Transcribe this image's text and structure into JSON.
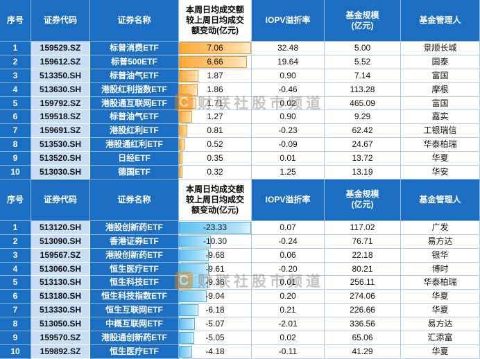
{
  "watermark": {
    "logo": "C",
    "text": "财联社股市频道"
  },
  "colors": {
    "header_blue": "#1B6EC2",
    "code_light_blue": "#C9DFF5",
    "bar_orange": "#FFA937",
    "bar_blue": "#5FC0F0"
  },
  "chart_data": [
    {
      "type": "table",
      "bar_style": "orange",
      "columns": [
        "序号",
        "证券代码",
        "证券名称",
        "本周日均成交额\n较上周日均成交\n额变动(亿元)",
        "IOPV溢折率",
        "基金规模\n(亿元)",
        "基金管理人"
      ],
      "rows": [
        {
          "no": "1",
          "code": "159529.SZ",
          "name": "标普消费ETF",
          "change": 7.06,
          "iopv": "32.48",
          "scale": "5.00",
          "manager": "景顺长城"
        },
        {
          "no": "2",
          "code": "159612.SZ",
          "name": "标普500ETF",
          "change": 6.66,
          "iopv": "19.64",
          "scale": "5.52",
          "manager": "国泰"
        },
        {
          "no": "3",
          "code": "513350.SH",
          "name": "标普油气ETF",
          "change": 1.87,
          "iopv": "0.90",
          "scale": "7.14",
          "manager": "富国"
        },
        {
          "no": "4",
          "code": "513630.SH",
          "name": "港股红利指数ETF",
          "change": 1.86,
          "iopv": "-0.46",
          "scale": "113.28",
          "manager": "摩根"
        },
        {
          "no": "5",
          "code": "159792.SZ",
          "name": "港股通互联网ETF",
          "change": 1.71,
          "iopv": "0.02",
          "scale": "465.09",
          "manager": "富国"
        },
        {
          "no": "6",
          "code": "159518.SZ",
          "name": "标普油气ETF",
          "change": 1.27,
          "iopv": "0.90",
          "scale": "9.29",
          "manager": "嘉实"
        },
        {
          "no": "7",
          "code": "159691.SZ",
          "name": "港股红利ETF",
          "change": 0.81,
          "iopv": "-0.23",
          "scale": "62.42",
          "manager": "工银瑞信"
        },
        {
          "no": "8",
          "code": "513530.SH",
          "name": "港股通红利ETF",
          "change": 0.52,
          "iopv": "-0.09",
          "scale": "24.67",
          "manager": "华泰柏瑞"
        },
        {
          "no": "9",
          "code": "513520.SH",
          "name": "日经ETF",
          "change": 0.35,
          "iopv": "0.01",
          "scale": "13.72",
          "manager": "华夏"
        },
        {
          "no": "10",
          "code": "513030.SH",
          "name": "德国ETF",
          "change": 0.32,
          "iopv": "1.25",
          "scale": "13.19",
          "manager": "华安"
        }
      ]
    },
    {
      "type": "table",
      "bar_style": "blue",
      "columns": [
        "序号",
        "证券代码",
        "证券名称",
        "本周日均成交额\n较上周日均成交\n额变动(亿元)",
        "IOPV溢折率",
        "基金规模\n(亿元)",
        "基金管理人"
      ],
      "rows": [
        {
          "no": "1",
          "code": "513120.SH",
          "name": "港股创新药ETF",
          "change": -23.33,
          "iopv": "0.07",
          "scale": "117.02",
          "manager": "广发"
        },
        {
          "no": "2",
          "code": "513090.SH",
          "name": "香港证券ETF",
          "change": -10.3,
          "iopv": "-0.24",
          "scale": "76.71",
          "manager": "易方达"
        },
        {
          "no": "3",
          "code": "159567.SZ",
          "name": "港股创新药ETF",
          "change": -9.68,
          "iopv": "0.06",
          "scale": "22.18",
          "manager": "银华"
        },
        {
          "no": "4",
          "code": "513060.SH",
          "name": "恒生医疗ETF",
          "change": -9.61,
          "iopv": "-0.20",
          "scale": "80.21",
          "manager": "博时"
        },
        {
          "no": "5",
          "code": "513130.SH",
          "name": "恒生科技ETF",
          "change": -9.36,
          "iopv": "0.01",
          "scale": "256.11",
          "manager": "华泰柏瑞"
        },
        {
          "no": "6",
          "code": "513180.SH",
          "name": "恒生科技指数ETF",
          "change": -9.04,
          "iopv": "0.20",
          "scale": "274.06",
          "manager": "华夏"
        },
        {
          "no": "7",
          "code": "513330.SH",
          "name": "恒生互联网ETF",
          "change": -6.18,
          "iopv": "0.21",
          "scale": "226.66",
          "manager": "华夏"
        },
        {
          "no": "8",
          "code": "513050.SH",
          "name": "中概互联网ETF",
          "change": -5.07,
          "iopv": "-2.01",
          "scale": "336.56",
          "manager": "易方达"
        },
        {
          "no": "9",
          "code": "159570.SZ",
          "name": "港股通创新药ETF",
          "change": -5.05,
          "iopv": "0.02",
          "scale": "65.06",
          "manager": "汇添富"
        },
        {
          "no": "10",
          "code": "159892.SZ",
          "name": "恒生医疗ETF",
          "change": -4.18,
          "iopv": "-0.11",
          "scale": "41.29",
          "manager": "华夏"
        }
      ]
    }
  ]
}
